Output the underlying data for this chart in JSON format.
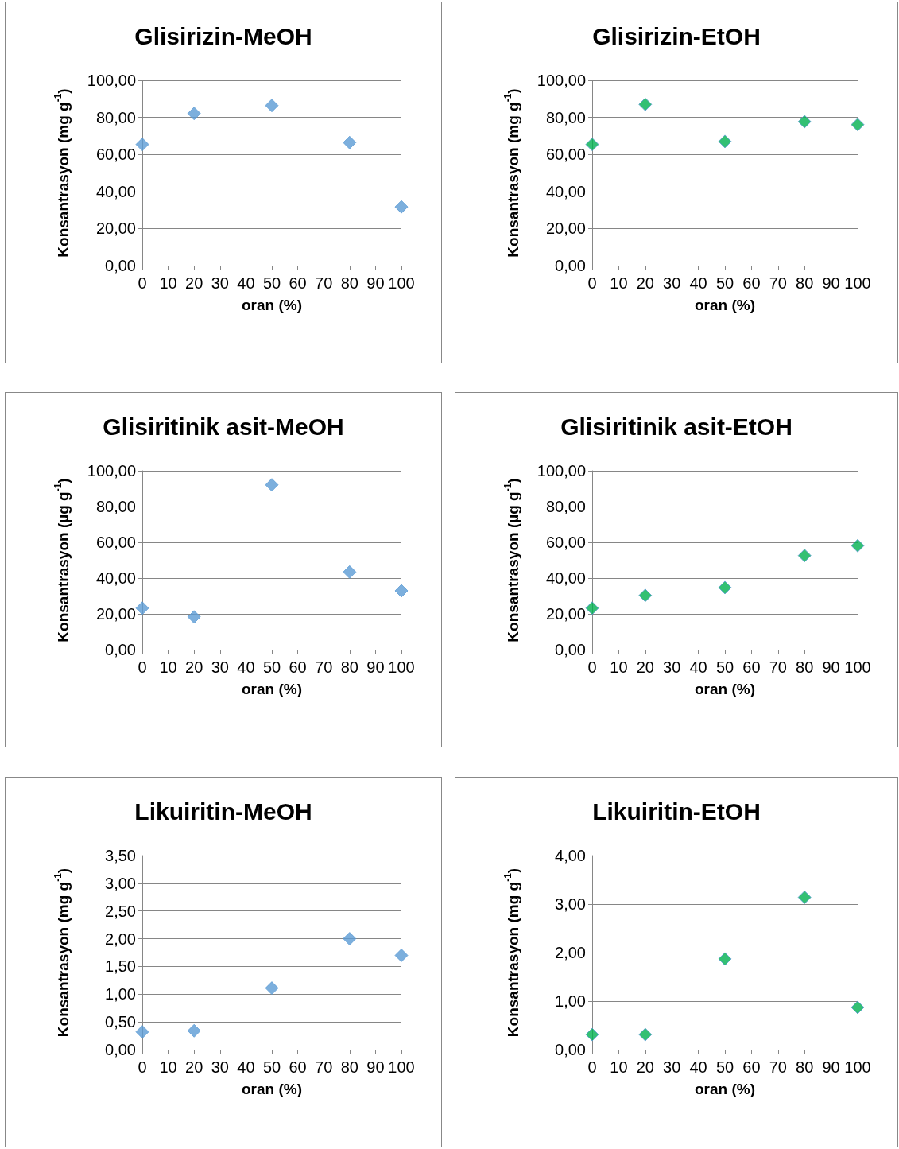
{
  "chart_data": [
    {
      "type": "scatter",
      "title": "Glisirizin-MeOH",
      "xlabel": "oran (%)",
      "ylabel": "Konsantrasyon (mg g$^{-1}$)",
      "marker": "diamond",
      "grid": "y",
      "x": [
        0,
        20,
        50,
        80,
        100
      ],
      "series": [
        {
          "color": "#5b9bd5",
          "values": [
            65.4,
            82.1,
            86.4,
            66.4,
            31.7
          ]
        }
      ],
      "xlim": [
        0,
        100
      ],
      "xticks": [
        0,
        10,
        20,
        30,
        40,
        50,
        60,
        70,
        80,
        90,
        100
      ],
      "ylim": [
        0,
        100
      ],
      "yticks": [
        {
          "value": 0,
          "label": "0,00"
        },
        {
          "value": 20,
          "label": "20,00"
        },
        {
          "value": 40,
          "label": "40,00"
        },
        {
          "value": 60,
          "label": "60,00"
        },
        {
          "value": 80,
          "label": "80,00"
        },
        {
          "value": 100,
          "label": "100,00"
        }
      ]
    },
    {
      "type": "scatter",
      "title": "Glisirizin-EtOH",
      "xlabel": "oran (%)",
      "ylabel": "Konsantrasyon (mg g$^{-1}$)",
      "marker": "diamond",
      "grid": "y",
      "x": [
        0,
        20,
        50,
        80,
        100
      ],
      "series": [
        {
          "color": "#00b050",
          "values": [
            65.4,
            87.0,
            67.0,
            77.7,
            76.1
          ]
        }
      ],
      "xlim": [
        0,
        100
      ],
      "xticks": [
        0,
        10,
        20,
        30,
        40,
        50,
        60,
        70,
        80,
        90,
        100
      ],
      "ylim": [
        0,
        100
      ],
      "yticks": [
        {
          "value": 0,
          "label": "0,00"
        },
        {
          "value": 20,
          "label": "20,00"
        },
        {
          "value": 40,
          "label": "40,00"
        },
        {
          "value": 60,
          "label": "60,00"
        },
        {
          "value": 80,
          "label": "80,00"
        },
        {
          "value": 100,
          "label": "100,00"
        }
      ]
    },
    {
      "type": "scatter",
      "title": "Glisiritinik asit-MeOH",
      "xlabel": "oran (%)",
      "ylabel": "Konsantrasyon (µg g$^{-1}$)",
      "marker": "diamond",
      "grid": "y",
      "x": [
        0,
        20,
        50,
        80,
        100
      ],
      "series": [
        {
          "color": "#5b9bd5",
          "values": [
            23.2,
            18.3,
            92.1,
            43.4,
            32.9
          ]
        }
      ],
      "xlim": [
        0,
        100
      ],
      "xticks": [
        0,
        10,
        20,
        30,
        40,
        50,
        60,
        70,
        80,
        90,
        100
      ],
      "ylim": [
        0,
        100
      ],
      "yticks": [
        {
          "value": 0,
          "label": "0,00"
        },
        {
          "value": 20,
          "label": "20,00"
        },
        {
          "value": 40,
          "label": "40,00"
        },
        {
          "value": 60,
          "label": "60,00"
        },
        {
          "value": 80,
          "label": "80,00"
        },
        {
          "value": 100,
          "label": "100,00"
        }
      ]
    },
    {
      "type": "scatter",
      "title": "Glisiritinik asit-EtOH",
      "xlabel": "oran (%)",
      "ylabel": "Konsantrasyon (µg g$^{-1}$)",
      "marker": "diamond",
      "grid": "y",
      "x": [
        0,
        20,
        50,
        80,
        100
      ],
      "series": [
        {
          "color": "#00b050",
          "values": [
            23.2,
            30.3,
            34.7,
            52.6,
            58.1
          ]
        }
      ],
      "xlim": [
        0,
        100
      ],
      "xticks": [
        0,
        10,
        20,
        30,
        40,
        50,
        60,
        70,
        80,
        90,
        100
      ],
      "ylim": [
        0,
        100
      ],
      "yticks": [
        {
          "value": 0,
          "label": "0,00"
        },
        {
          "value": 20,
          "label": "20,00"
        },
        {
          "value": 40,
          "label": "40,00"
        },
        {
          "value": 60,
          "label": "60,00"
        },
        {
          "value": 80,
          "label": "80,00"
        },
        {
          "value": 100,
          "label": "100,00"
        }
      ]
    },
    {
      "type": "scatter",
      "title": "Likuiritin-MeOH",
      "xlabel": "oran (%)",
      "ylabel": "Konsantrasyon (mg g$^{-1}$)",
      "marker": "diamond",
      "grid": "y",
      "x": [
        0,
        20,
        50,
        80,
        100
      ],
      "series": [
        {
          "color": "#5b9bd5",
          "values": [
            0.32,
            0.34,
            1.11,
            2.0,
            1.7
          ]
        }
      ],
      "xlim": [
        0,
        100
      ],
      "xticks": [
        0,
        10,
        20,
        30,
        40,
        50,
        60,
        70,
        80,
        90,
        100
      ],
      "ylim": [
        0,
        3.5
      ],
      "yticks": [
        {
          "value": 0,
          "label": "0,00"
        },
        {
          "value": 0.5,
          "label": "0,50"
        },
        {
          "value": 1,
          "label": "1,00"
        },
        {
          "value": 1.5,
          "label": "1,50"
        },
        {
          "value": 2,
          "label": "2,00"
        },
        {
          "value": 2.5,
          "label": "2,50"
        },
        {
          "value": 3,
          "label": "3,00"
        },
        {
          "value": 3.5,
          "label": "3,50"
        }
      ]
    },
    {
      "type": "scatter",
      "title": "Likuiritin-EtOH",
      "xlabel": "oran (%)",
      "ylabel": "Konsantrasyon (mg g$^{-1}$)",
      "marker": "diamond",
      "grid": "y",
      "x": [
        0,
        20,
        50,
        80,
        100
      ],
      "series": [
        {
          "color": "#00b050",
          "values": [
            0.31,
            0.31,
            1.87,
            3.14,
            0.87
          ]
        }
      ],
      "xlim": [
        0,
        100
      ],
      "xticks": [
        0,
        10,
        20,
        30,
        40,
        50,
        60,
        70,
        80,
        90,
        100
      ],
      "ylim": [
        0,
        4
      ],
      "yticks": [
        {
          "value": 0,
          "label": "0,00"
        },
        {
          "value": 1,
          "label": "1,00"
        },
        {
          "value": 2,
          "label": "2,00"
        },
        {
          "value": 3,
          "label": "3,00"
        },
        {
          "value": 4,
          "label": "4,00"
        }
      ]
    }
  ]
}
